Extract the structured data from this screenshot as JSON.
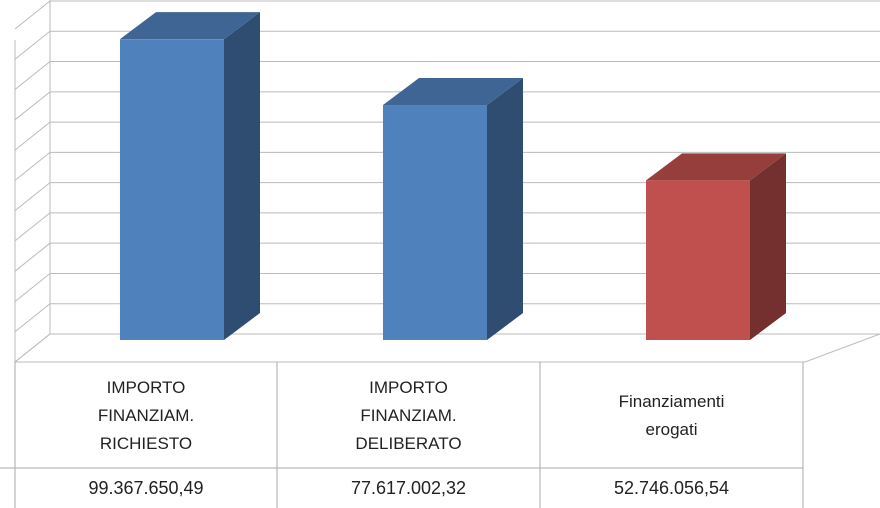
{
  "chart_data": {
    "type": "bar3d",
    "categories": [
      "IMPORTO\nFINANZIAM.\nRICHIESTO",
      "IMPORTO\nFINANZIAM.\nDELIBERATO",
      "Finanziamenti\nerogati"
    ],
    "values": [
      99367650.49,
      77617002.32,
      52746056.54
    ],
    "value_labels": [
      "99.367.650,49",
      "77.617.002,32",
      "52.746.056,54"
    ],
    "colors": [
      "#4f81bd",
      "#4f81bd",
      "#c0504d"
    ],
    "ylim": [
      0,
      110000000
    ],
    "yticks": [
      0,
      10000000,
      20000000,
      30000000,
      40000000,
      50000000,
      60000000,
      70000000,
      80000000,
      90000000,
      100000000,
      110000000
    ],
    "grid": true
  }
}
